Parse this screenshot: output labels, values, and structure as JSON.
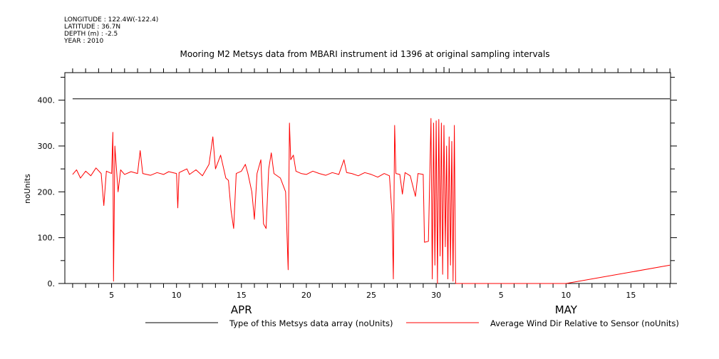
{
  "header": {
    "lines": [
      "LONGITUDE : 122.4W(-122.4)",
      "LATITUDE : 36.7N",
      "DEPTH (m) : -2.5",
      "YEAR : 2010"
    ]
  },
  "chart_data": {
    "type": "line",
    "title": "Mooring M2 Metsys data from MBARI instrument id 1396 at original sampling intervals",
    "ylabel": "noUnits",
    "xlabel": "",
    "ylim": [
      0,
      460
    ],
    "xlim": [
      "2010-04-02",
      "2010-05-18"
    ],
    "y_ticks": [
      0,
      100,
      200,
      300,
      400
    ],
    "y_tick_labels": [
      "0.",
      "100.",
      "200.",
      "300.",
      "400."
    ],
    "x_ticks": [
      {
        "date": "2010-04-05",
        "label": "5"
      },
      {
        "date": "2010-04-10",
        "label": "10"
      },
      {
        "date": "2010-04-15",
        "label": "15"
      },
      {
        "date": "2010-04-20",
        "label": "20"
      },
      {
        "date": "2010-04-25",
        "label": "25"
      },
      {
        "date": "2010-04-30",
        "label": "30"
      },
      {
        "date": "2010-05-05",
        "label": "5"
      },
      {
        "date": "2010-05-10",
        "label": "10"
      },
      {
        "date": "2010-05-15",
        "label": "15"
      }
    ],
    "months": [
      {
        "date": "2010-04-15",
        "label": "APR"
      },
      {
        "date": "2010-05-10",
        "label": "MAY"
      }
    ],
    "grid": false,
    "legend_position": "bottom",
    "series": [
      {
        "name": "Type of this Metsys data array (noUnits)",
        "color": "#000000",
        "points": [
          [
            "2010-04-02",
            403
          ],
          [
            "2010-05-18",
            403
          ]
        ]
      },
      {
        "name": "Average Wind Dir Relative to Sensor (noUnits)",
        "color": "#ff0000",
        "points": [
          [
            "2010-04-02",
            238
          ],
          [
            "2010-04-02.3",
            248
          ],
          [
            "2010-04-02.6",
            230
          ],
          [
            "2010-04-03",
            245
          ],
          [
            "2010-04-03.4",
            235
          ],
          [
            "2010-04-03.8",
            252
          ],
          [
            "2010-04-04.2",
            240
          ],
          [
            "2010-04-04.4",
            170
          ],
          [
            "2010-04-04.6",
            245
          ],
          [
            "2010-04-05",
            240
          ],
          [
            "2010-04-05.1",
            330
          ],
          [
            "2010-04-05.15",
            5
          ],
          [
            "2010-04-05.25",
            300
          ],
          [
            "2010-04-05.5",
            200
          ],
          [
            "2010-04-05.7",
            248
          ],
          [
            "2010-04-06",
            238
          ],
          [
            "2010-04-06.5",
            244
          ],
          [
            "2010-04-07",
            240
          ],
          [
            "2010-04-07.2",
            290
          ],
          [
            "2010-04-07.4",
            240
          ],
          [
            "2010-04-08",
            236
          ],
          [
            "2010-04-08.5",
            242
          ],
          [
            "2010-04-09",
            238
          ],
          [
            "2010-04-09.4",
            244
          ],
          [
            "2010-04-10",
            240
          ],
          [
            "2010-04-10.1",
            165
          ],
          [
            "2010-04-10.2",
            242
          ],
          [
            "2010-04-10.8",
            250
          ],
          [
            "2010-04-11",
            238
          ],
          [
            "2010-04-11.5",
            248
          ],
          [
            "2010-04-12",
            235
          ],
          [
            "2010-04-12.5",
            260
          ],
          [
            "2010-04-12.8",
            320
          ],
          [
            "2010-04-13",
            250
          ],
          [
            "2010-04-13.4",
            280
          ],
          [
            "2010-04-13.8",
            230
          ],
          [
            "2010-04-14",
            225
          ],
          [
            "2010-04-14.2",
            160
          ],
          [
            "2010-04-14.4",
            120
          ],
          [
            "2010-04-14.6",
            240
          ],
          [
            "2010-04-15",
            245
          ],
          [
            "2010-04-15.3",
            260
          ],
          [
            "2010-04-15.5",
            240
          ],
          [
            "2010-04-15.8",
            200
          ],
          [
            "2010-04-16",
            140
          ],
          [
            "2010-04-16.2",
            240
          ],
          [
            "2010-04-16.5",
            270
          ],
          [
            "2010-04-16.7",
            130
          ],
          [
            "2010-04-16.9",
            120
          ],
          [
            "2010-04-17.1",
            250
          ],
          [
            "2010-04-17.3",
            285
          ],
          [
            "2010-04-17.5",
            240
          ],
          [
            "2010-04-18",
            230
          ],
          [
            "2010-04-18.4",
            200
          ],
          [
            "2010-04-18.6",
            30
          ],
          [
            "2010-04-18.7",
            350
          ],
          [
            "2010-04-18.8",
            270
          ],
          [
            "2010-04-19",
            280
          ],
          [
            "2010-04-19.2",
            245
          ],
          [
            "2010-04-19.6",
            240
          ],
          [
            "2010-04-20",
            238
          ],
          [
            "2010-04-20.5",
            245
          ],
          [
            "2010-04-21",
            240
          ],
          [
            "2010-04-21.5",
            236
          ],
          [
            "2010-04-22",
            242
          ],
          [
            "2010-04-22.5",
            238
          ],
          [
            "2010-04-22.9",
            270
          ],
          [
            "2010-04-23.1",
            242
          ],
          [
            "2010-04-23.5",
            240
          ],
          [
            "2010-04-24",
            235
          ],
          [
            "2010-04-24.5",
            242
          ],
          [
            "2010-04-25",
            238
          ],
          [
            "2010-04-25.5",
            232
          ],
          [
            "2010-04-26",
            240
          ],
          [
            "2010-04-26.4",
            235
          ],
          [
            "2010-04-26.6",
            150
          ],
          [
            "2010-04-26.7",
            10
          ],
          [
            "2010-04-26.8",
            345
          ],
          [
            "2010-04-26.9",
            240
          ],
          [
            "2010-04-27.2",
            238
          ],
          [
            "2010-04-27.4",
            195
          ],
          [
            "2010-04-27.6",
            242
          ],
          [
            "2010-04-28",
            235
          ],
          [
            "2010-04-28.4",
            190
          ],
          [
            "2010-04-28.6",
            240
          ],
          [
            "2010-04-29",
            238
          ],
          [
            "2010-04-29.1",
            90
          ],
          [
            "2010-04-29.4",
            92
          ],
          [
            "2010-04-29.6",
            360
          ],
          [
            "2010-04-29.7",
            10
          ],
          [
            "2010-04-29.8",
            350
          ],
          [
            "2010-04-29.9",
            40
          ],
          [
            "2010-04-30",
            355
          ],
          [
            "2010-04-30.1",
            0
          ],
          [
            "2010-04-30.2",
            358
          ],
          [
            "2010-04-30.3",
            60
          ],
          [
            "2010-04-30.4",
            350
          ],
          [
            "2010-04-30.5",
            20
          ],
          [
            "2010-04-30.6",
            345
          ],
          [
            "2010-04-30.7",
            80
          ],
          [
            "2010-04-30.8",
            300
          ],
          [
            "2010-04-30.9",
            10
          ],
          [
            "2010-05-01",
            320
          ],
          [
            "2010-05-01.1",
            40
          ],
          [
            "2010-05-01.2",
            310
          ],
          [
            "2010-05-01.3",
            5
          ],
          [
            "2010-05-01.4",
            345
          ],
          [
            "2010-05-01.5",
            0
          ],
          [
            "2010-05-02",
            0
          ],
          [
            "2010-05-10",
            0
          ],
          [
            "2010-05-18",
            40
          ]
        ]
      }
    ]
  }
}
